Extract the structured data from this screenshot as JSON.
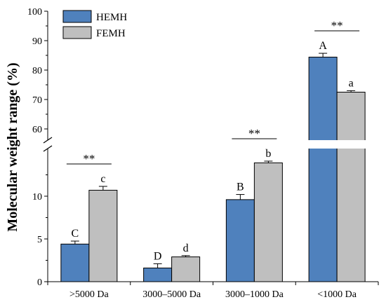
{
  "chart_data": {
    "type": "bar",
    "ylabel": "Molecular weight range (%)",
    "xlabel": "",
    "categories": [
      ">5000 Da",
      "3000–5000 Da",
      "3000–1000 Da",
      "<1000 Da"
    ],
    "series": [
      {
        "name": "HEMH",
        "color": "#4f81bd",
        "values": [
          4.4,
          1.6,
          9.6,
          84.4
        ],
        "errors": [
          0.35,
          0.5,
          0.6,
          1.3
        ],
        "letters": [
          "C",
          "D",
          "B",
          "A"
        ]
      },
      {
        "name": "FEMH",
        "color": "#bfbfbf",
        "values": [
          10.7,
          2.9,
          13.9,
          72.5
        ],
        "errors": [
          0.45,
          0.15,
          0.2,
          0.5
        ],
        "letters": [
          "c",
          "d",
          "b",
          "a"
        ]
      }
    ],
    "significance": [
      "**",
      "",
      "**",
      "**"
    ],
    "y_axis": {
      "broken": true,
      "lower_range": [
        0,
        15
      ],
      "upper_range": [
        55,
        100
      ],
      "lower_ticks": [
        "0",
        "5",
        "10"
      ],
      "upper_ticks": [
        "60",
        "70",
        "80",
        "90",
        "100"
      ]
    },
    "legend_position": "top-left",
    "grid": false
  }
}
